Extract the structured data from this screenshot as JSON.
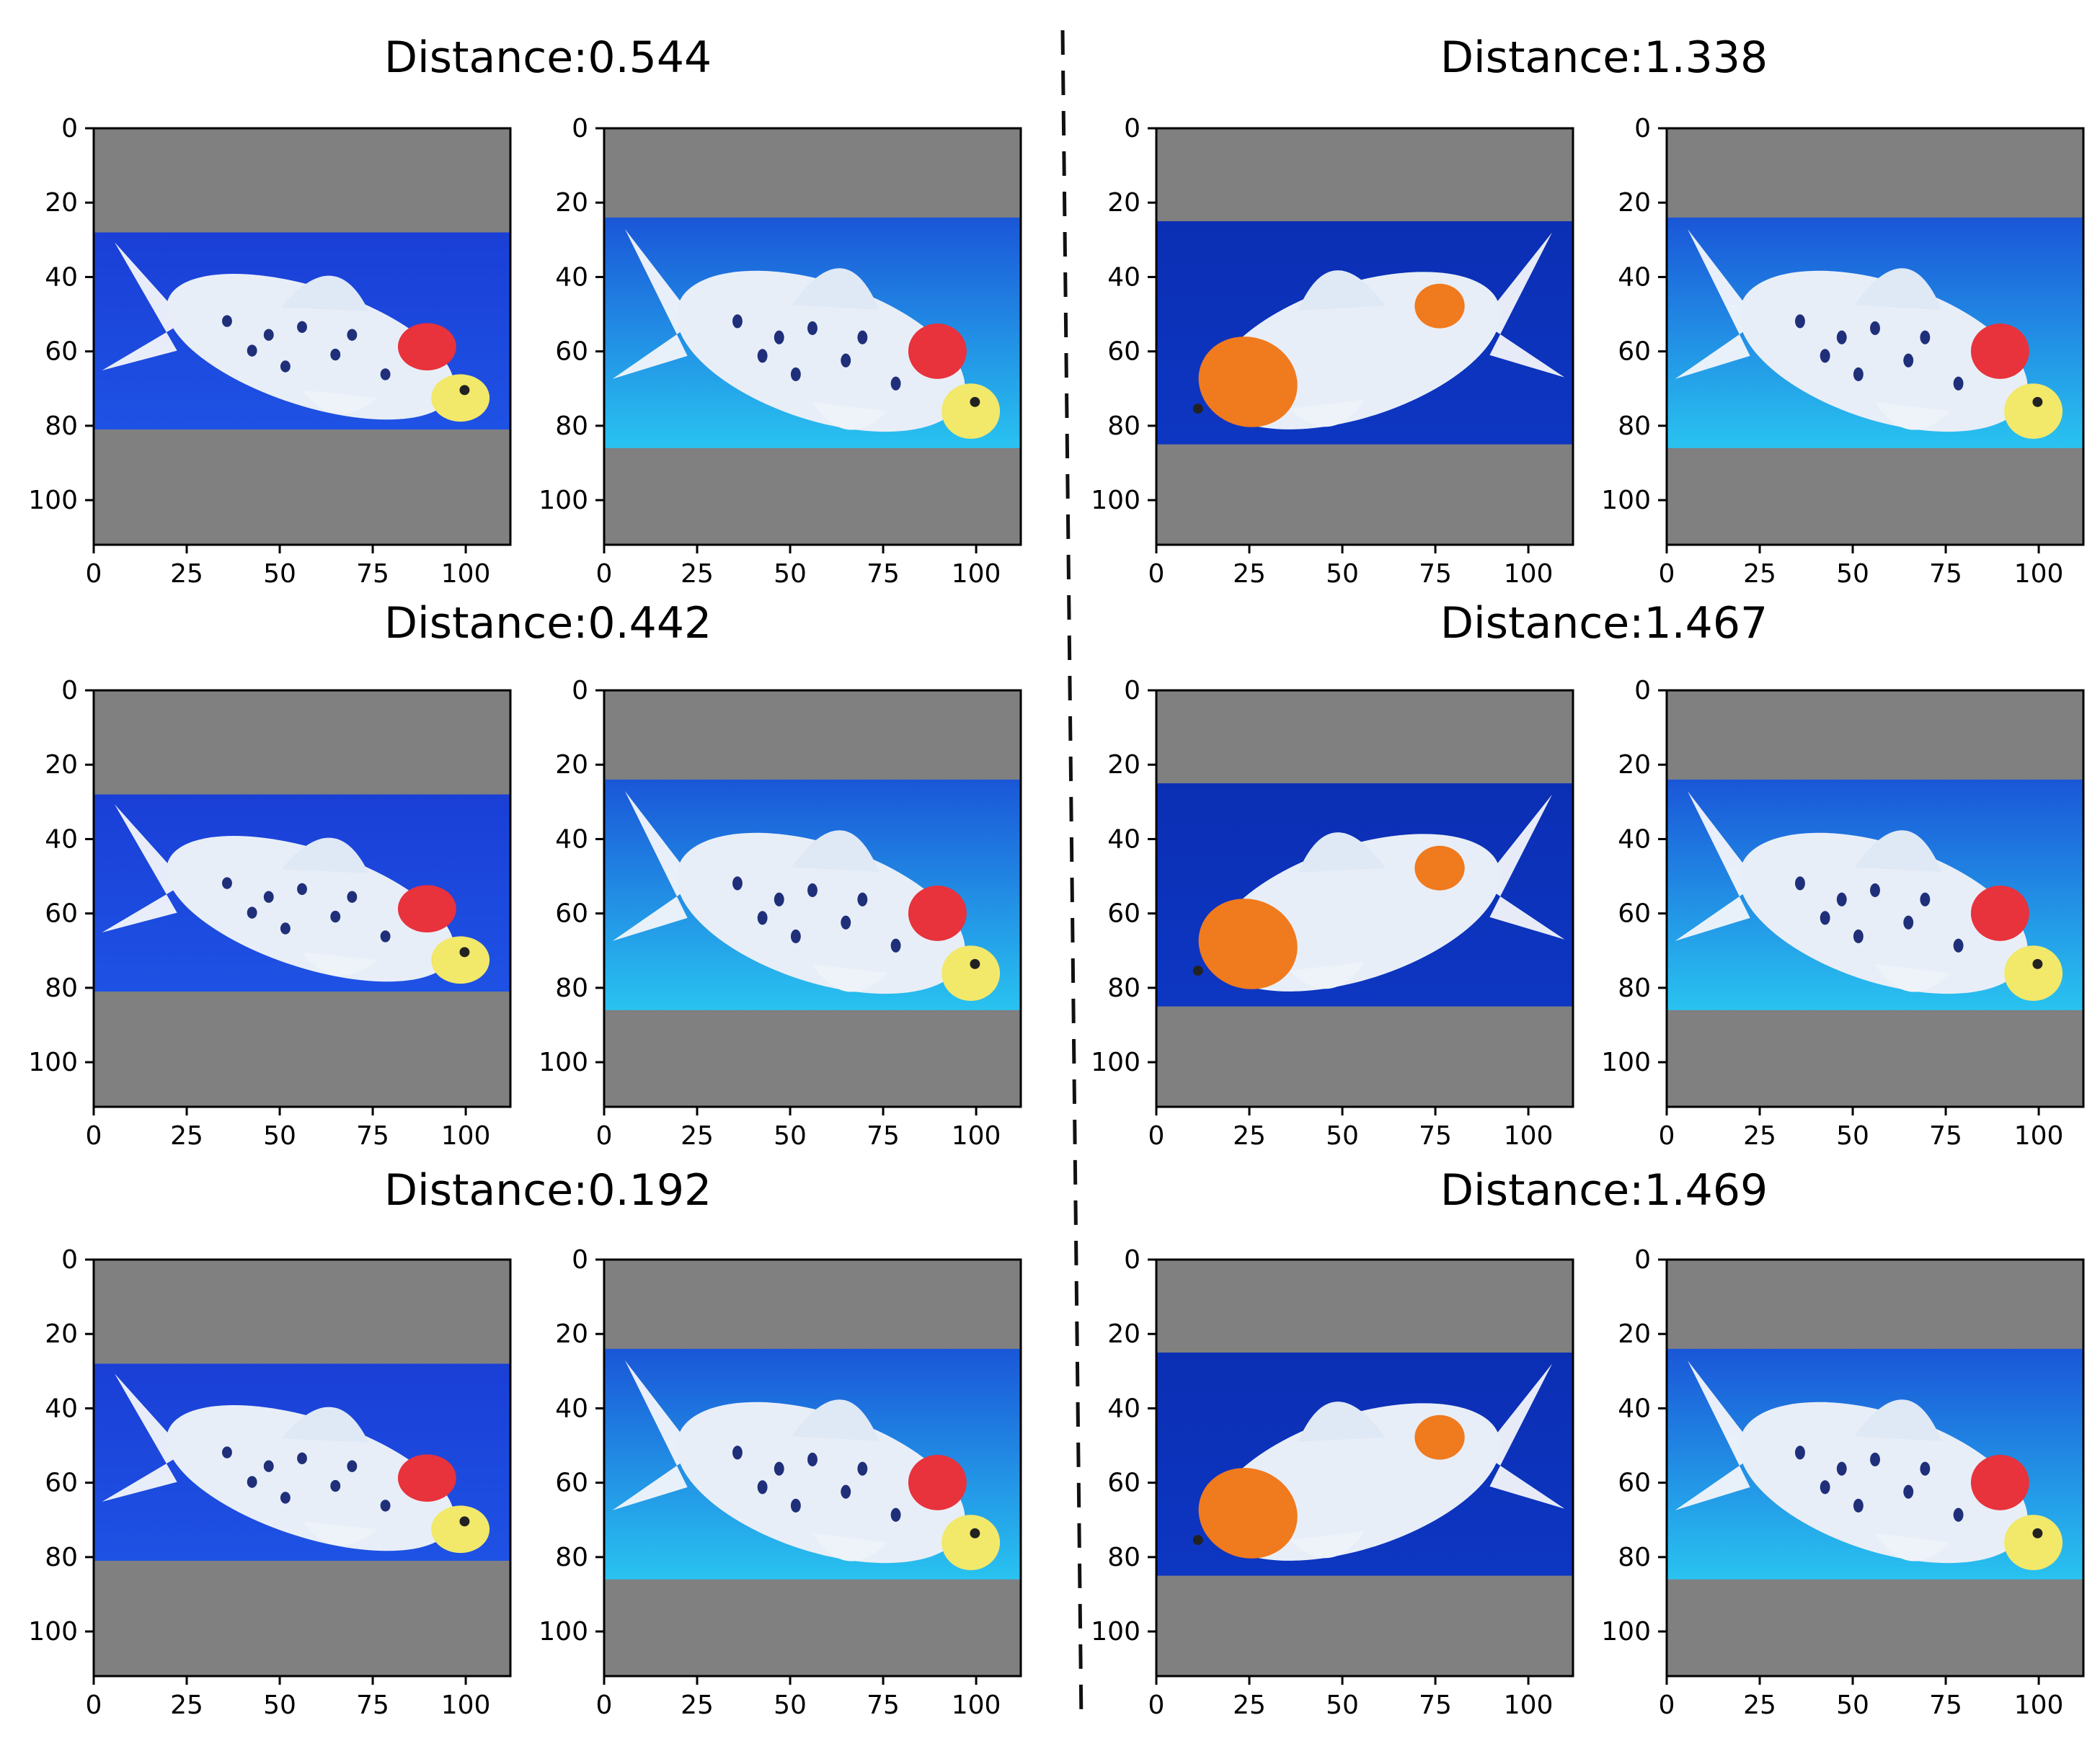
{
  "figure": {
    "dividers": [
      {
        "style": "dashed"
      }
    ],
    "pairs": [
      {
        "title": "Distance:0.544",
        "images": [
          {
            "fish": "kohaku-spotted",
            "band_top": 28,
            "band_bottom": 81,
            "water": [
              "#1a3fd6",
              "#1e52e4"
            ]
          },
          {
            "fish": "kohaku-spotted-2",
            "band_top": 24,
            "band_bottom": 86,
            "water": [
              "#1a56d8",
              "#29c3f0"
            ]
          }
        ]
      },
      {
        "title": "Distance:1.338",
        "images": [
          {
            "fish": "orange-white",
            "band_top": 25,
            "band_bottom": 85,
            "water": [
              "#0b2fb4",
              "#0d36c2"
            ]
          },
          {
            "fish": "kohaku-spotted-2",
            "band_top": 24,
            "band_bottom": 86,
            "water": [
              "#1a56d8",
              "#29c3f0"
            ]
          }
        ]
      },
      {
        "title": "Distance:0.442",
        "images": [
          {
            "fish": "kohaku-spotted",
            "band_top": 28,
            "band_bottom": 81,
            "water": [
              "#1a3fd6",
              "#1e52e4"
            ]
          },
          {
            "fish": "kohaku-spotted-2",
            "band_top": 24,
            "band_bottom": 86,
            "water": [
              "#1a56d8",
              "#29c3f0"
            ]
          }
        ]
      },
      {
        "title": "Distance:1.467",
        "images": [
          {
            "fish": "orange-white",
            "band_top": 25,
            "band_bottom": 85,
            "water": [
              "#0b2fb4",
              "#0d36c2"
            ]
          },
          {
            "fish": "kohaku-spotted-2",
            "band_top": 24,
            "band_bottom": 86,
            "water": [
              "#1a56d8",
              "#29c3f0"
            ]
          }
        ]
      },
      {
        "title": "Distance:0.192",
        "images": [
          {
            "fish": "kohaku-spotted",
            "band_top": 28,
            "band_bottom": 81,
            "water": [
              "#1a3fd6",
              "#1e52e4"
            ]
          },
          {
            "fish": "kohaku-spotted-2",
            "band_top": 24,
            "band_bottom": 86,
            "water": [
              "#1a56d8",
              "#29c3f0"
            ]
          }
        ]
      },
      {
        "title": "Distance:1.469",
        "images": [
          {
            "fish": "orange-white",
            "band_top": 25,
            "band_bottom": 85,
            "water": [
              "#0b2fb4",
              "#0d36c2"
            ]
          },
          {
            "fish": "kohaku-spotted-2",
            "band_top": 24,
            "band_bottom": 86,
            "water": [
              "#1a56d8",
              "#29c3f0"
            ]
          }
        ]
      }
    ],
    "axes": {
      "xlim": [
        0,
        112
      ],
      "ylim": [
        0,
        112
      ],
      "xticks": [
        0,
        25,
        50,
        75,
        100
      ],
      "yticks": [
        0,
        20,
        40,
        60,
        80,
        100
      ],
      "xtick_labels": [
        "0",
        "25",
        "50",
        "75",
        "100"
      ],
      "ytick_labels": [
        "0",
        "20",
        "40",
        "60",
        "80",
        "100"
      ]
    },
    "colors": {
      "padding": "#808080",
      "fish_body": "#e8eef7",
      "spots": "#1f2f7a",
      "red": "#e8323c",
      "orange": "#f07a1e",
      "head": "#f2e86a"
    }
  }
}
